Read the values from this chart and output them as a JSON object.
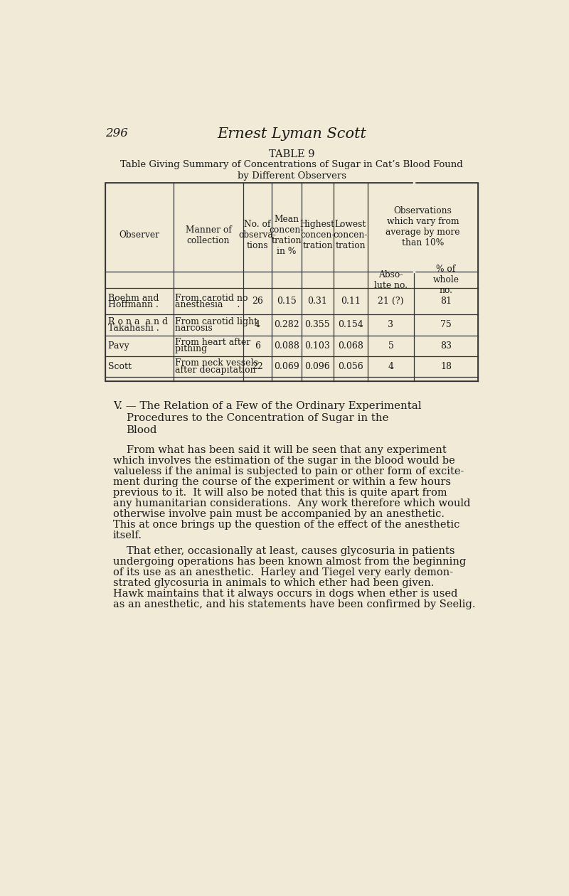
{
  "bg_color": "#f0ead6",
  "page_num": "296",
  "page_header": "Ernest Lyman Scott",
  "table_title_line1": "TABLE 9",
  "table_title_line2": "Table Giving Summary of Concentrations of Sugar in Cat’s Blood Found",
  "table_title_line3": "by Different Observers",
  "span_header_text": "Observations\nwhich vary from\naverage by more\nthan 10%",
  "rows": [
    {
      "observer_lines": [
        "Boehm and",
        "Hoffmann ."
      ],
      "manner_lines": [
        "From carotid no",
        "anesthesia     ."
      ],
      "n": "26",
      "mean": "0.15",
      "highest": "0.31",
      "lowest": "0.11",
      "abs_no": "21 (?)",
      "pct": "81"
    },
    {
      "observer_lines": [
        "R o n a  a n d",
        "Takahashi ."
      ],
      "manner_lines": [
        "From carotid light",
        "narcosis        "
      ],
      "n": "4",
      "mean": "0.282",
      "highest": "0.355",
      "lowest": "0.154",
      "abs_no": "3",
      "pct": "75"
    },
    {
      "observer_lines": [
        "Pavy        "
      ],
      "manner_lines": [
        "From heart after",
        "pithing         "
      ],
      "n": "6",
      "mean": "0.088",
      "highest": "0.103",
      "lowest": "0.068",
      "abs_no": "5",
      "pct": "83"
    },
    {
      "observer_lines": [
        "Scott        "
      ],
      "manner_lines": [
        "From neck vessels",
        "after decapitation"
      ],
      "n": "22",
      "mean": "0.069",
      "highest": "0.096",
      "lowest": "0.056",
      "abs_no": "4",
      "pct": "18"
    }
  ],
  "section_heading": [
    "V. — The Relation of a Few of the Ordinary Experimental",
    "Procedures to the Concentration of Sugar in the",
    "Blood"
  ],
  "para1_lines": [
    "From what has been said it will be seen that any experiment",
    "which involves the estimation of the sugar in the blood would be",
    "valueless if the animal is subjected to pain or other form of excite-",
    "ment during the course of the experiment or within a few hours",
    "previous to it.  It will also be noted that this is quite apart from",
    "any humanitarian considerations.  Any work therefore which would",
    "otherwise involve pain must be accompanied by an anesthetic.",
    "This at once brings up the question of the effect of the anesthetic",
    "itself."
  ],
  "para2_lines": [
    "That ether, occasionally at least, causes glycosuria in patients",
    "undergoing operations has been known almost from the beginning",
    "of its use as an anesthetic.  Harley and Tiegel very early demon-",
    "strated glycosuria in animals to which ether had been given.",
    "Hawk maintains that it always occurs in dogs when ether is used",
    "as an anesthetic, and his statements have been confirmed by Seelig."
  ]
}
